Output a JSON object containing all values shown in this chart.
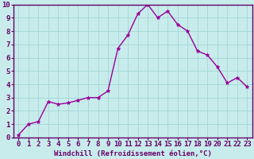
{
  "x": [
    0,
    1,
    2,
    3,
    4,
    5,
    6,
    7,
    8,
    9,
    10,
    11,
    12,
    13,
    14,
    15,
    16,
    17,
    18,
    19,
    20,
    21,
    22,
    23
  ],
  "y": [
    0.2,
    1.0,
    1.2,
    2.7,
    2.5,
    2.6,
    2.8,
    3.0,
    3.0,
    3.5,
    6.7,
    7.7,
    9.3,
    10.0,
    9.0,
    9.5,
    8.5,
    8.0,
    6.5,
    6.2,
    5.3,
    4.1,
    4.5,
    3.8
  ],
  "line_color": "#990099",
  "marker_color": "#990099",
  "bg_color": "#c8ecec",
  "grid_color": "#a8d8d8",
  "spine_color": "#660066",
  "xlabel": "Windchill (Refroidissement éolien,°C)",
  "xlim": [
    -0.5,
    23.5
  ],
  "ylim": [
    0,
    10
  ],
  "xticks": [
    0,
    1,
    2,
    3,
    4,
    5,
    6,
    7,
    8,
    9,
    10,
    11,
    12,
    13,
    14,
    15,
    16,
    17,
    18,
    19,
    20,
    21,
    22,
    23
  ],
  "yticks": [
    0,
    1,
    2,
    3,
    4,
    5,
    6,
    7,
    8,
    9,
    10
  ],
  "xlabel_fontsize": 6.5,
  "tick_fontsize": 6.5
}
